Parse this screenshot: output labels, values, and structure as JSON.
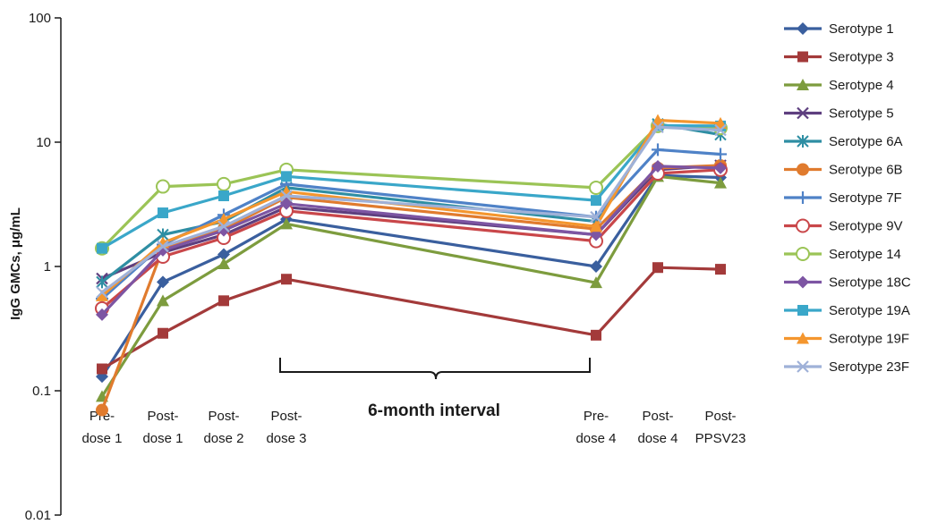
{
  "chart_data": {
    "type": "line",
    "ylabel": "IgG GMCs, μg/mL",
    "yscale": "log",
    "ylim": [
      0.01,
      100
    ],
    "yticks": [
      "0.01",
      "0.1",
      "1",
      "10",
      "100"
    ],
    "categories": [
      [
        "Pre-",
        "dose 1"
      ],
      [
        "Post-",
        "dose 1"
      ],
      [
        "Post-",
        "dose 2"
      ],
      [
        "Post-",
        "dose 3"
      ],
      [
        "Pre-",
        "dose 4"
      ],
      [
        "Post-",
        "dose 4"
      ],
      [
        "Post-",
        "PPSV23"
      ]
    ],
    "annotation": "6-month interval",
    "legend_position": "right",
    "grid": false,
    "series": [
      {
        "name": "Serotype 1",
        "color": "#3a5f9e",
        "marker": "diamond",
        "values": [
          0.13,
          0.75,
          1.25,
          2.4,
          1.0,
          5.4,
          5.2
        ]
      },
      {
        "name": "Serotype 3",
        "color": "#a33a3a",
        "marker": "square",
        "values": [
          0.15,
          0.29,
          0.53,
          0.79,
          0.28,
          0.98,
          0.95
        ]
      },
      {
        "name": "Serotype 4",
        "color": "#7d9c3e",
        "marker": "triangle",
        "values": [
          0.09,
          0.53,
          1.05,
          2.2,
          0.74,
          5.3,
          4.7
        ]
      },
      {
        "name": "Serotype 5",
        "color": "#5e3f7f",
        "marker": "x",
        "values": [
          0.8,
          1.3,
          1.8,
          3.0,
          1.8,
          6.0,
          6.5
        ]
      },
      {
        "name": "Serotype 6A",
        "color": "#2e8ea3",
        "marker": "asterisk",
        "values": [
          0.75,
          1.8,
          2.3,
          4.3,
          2.3,
          14,
          11.5
        ]
      },
      {
        "name": "Serotype 6B",
        "color": "#e07b2e",
        "marker": "circle",
        "values": [
          0.07,
          1.4,
          2.0,
          3.6,
          2.0,
          6.2,
          6.5
        ]
      },
      {
        "name": "Serotype 7F",
        "color": "#4f82c7",
        "marker": "plus",
        "values": [
          0.55,
          1.5,
          2.6,
          4.6,
          2.5,
          8.7,
          8.0
        ]
      },
      {
        "name": "Serotype 9V",
        "color": "#c9474a",
        "marker": "ocircle",
        "values": [
          0.46,
          1.2,
          1.7,
          2.8,
          1.6,
          5.6,
          6.0
        ]
      },
      {
        "name": "Serotype 14",
        "color": "#9bc456",
        "marker": "ocircle",
        "values": [
          1.4,
          4.4,
          4.6,
          6.0,
          4.3,
          13.5,
          13.0
        ]
      },
      {
        "name": "Serotype 18C",
        "color": "#7d55a3",
        "marker": "diamond",
        "values": [
          0.41,
          1.35,
          1.95,
          3.2,
          1.8,
          6.4,
          6.2
        ]
      },
      {
        "name": "Serotype 19A",
        "color": "#3aa7c9",
        "marker": "square",
        "values": [
          1.4,
          2.7,
          3.7,
          5.3,
          3.4,
          13.6,
          13.5
        ]
      },
      {
        "name": "Serotype 19F",
        "color": "#f4962e",
        "marker": "triangle",
        "values": [
          0.58,
          1.55,
          2.4,
          4.0,
          2.1,
          15,
          14.2
        ]
      },
      {
        "name": "Serotype 23F",
        "color": "#9fb1d8",
        "marker": "x",
        "values": [
          0.62,
          1.45,
          2.1,
          3.7,
          2.5,
          13.2,
          12.5
        ]
      }
    ]
  }
}
